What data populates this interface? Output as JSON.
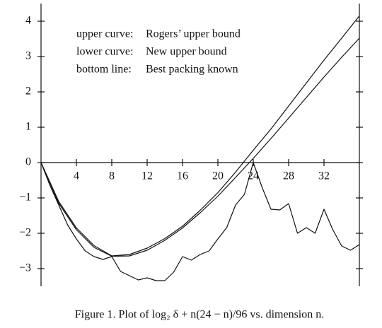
{
  "chart_data": {
    "type": "line",
    "caption": "Figure 1. Plot of log₂ δ + n(24 − n)/96 vs. dimension n.",
    "legend_keys": [
      "upper curve:",
      "lower curve:",
      "bottom line:"
    ],
    "xlim": [
      0,
      36
    ],
    "ylim": [
      -3.5,
      4.5
    ],
    "xticks": [
      4,
      8,
      12,
      16,
      20,
      24,
      28,
      32
    ],
    "yticks": [
      {
        "value": -3,
        "label": "−3"
      },
      {
        "value": -2,
        "label": "−2"
      },
      {
        "value": -1,
        "label": "−1"
      },
      0,
      1,
      2,
      3,
      4
    ],
    "series": [
      {
        "name": "Rogers’ upper bound",
        "color": "#111111",
        "x": [
          0,
          2,
          4,
          6,
          8,
          10,
          12,
          14,
          16,
          18,
          20,
          22,
          24,
          26,
          28,
          30,
          32,
          34,
          36
        ],
        "values": [
          0,
          -1.1,
          -1.85,
          -2.35,
          -2.64,
          -2.6,
          -2.42,
          -2.15,
          -1.8,
          -1.35,
          -0.85,
          -0.27,
          0.35,
          0.95,
          1.6,
          2.25,
          2.9,
          3.52,
          4.15
        ]
      },
      {
        "name": "New upper bound",
        "color": "#111111",
        "x": [
          0,
          2,
          4,
          6,
          8,
          10,
          12,
          14,
          16,
          18,
          20,
          22,
          24,
          26,
          28,
          30,
          32,
          34,
          36
        ],
        "values": [
          0,
          -1.15,
          -1.9,
          -2.4,
          -2.65,
          -2.64,
          -2.48,
          -2.2,
          -1.85,
          -1.42,
          -0.95,
          -0.42,
          0.12,
          0.68,
          1.26,
          1.84,
          2.42,
          2.98,
          3.52
        ]
      },
      {
        "name": "Best packing known",
        "color": "#111111",
        "x": [
          0,
          1,
          2,
          3,
          4,
          5,
          6,
          7,
          8,
          9,
          10,
          11,
          12,
          13,
          14,
          15,
          16,
          17,
          18,
          19,
          20,
          21,
          22,
          23,
          24,
          25,
          26,
          27,
          28,
          29,
          30,
          31,
          32,
          33,
          34,
          35,
          36
        ],
        "values": [
          0,
          -0.64,
          -1.2,
          -1.76,
          -2.16,
          -2.5,
          -2.66,
          -2.74,
          -2.66,
          -3.08,
          -3.2,
          -3.32,
          -3.26,
          -3.34,
          -3.34,
          -3.1,
          -2.66,
          -2.76,
          -2.6,
          -2.5,
          -2.16,
          -1.84,
          -1.2,
          -0.9,
          0,
          -0.7,
          -1.32,
          -1.34,
          -1.16,
          -2.0,
          -1.84,
          -2.0,
          -1.32,
          -1.9,
          -2.36,
          -2.48,
          -2.32
        ]
      }
    ]
  }
}
